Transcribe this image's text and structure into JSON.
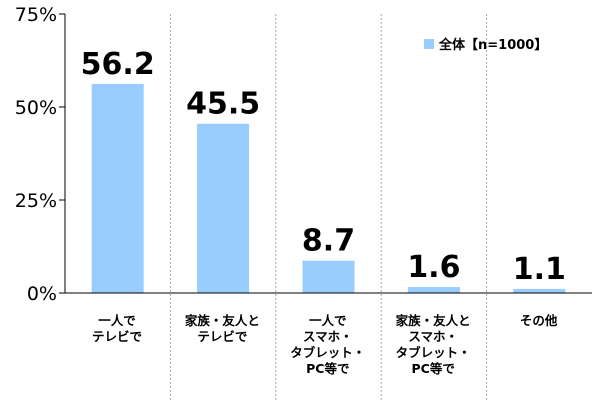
{
  "colors": {
    "bar": "#99ccff",
    "axis": "#000000",
    "divider": "#a6a6a6",
    "text": "#000000"
  },
  "legend": {
    "label": "全体【n=1000】"
  },
  "chart_data": {
    "type": "bar",
    "categories": [
      "一人で\nテレビで",
      "家族・友人と\nテレビで",
      "一人で\nスマホ・\nタブレット・\nPC等で",
      "家族・友人と\nスマホ・\nタブレット・\nPC等で",
      "その他"
    ],
    "series": [
      {
        "name": "全体【n=1000】",
        "values": [
          56.2,
          45.5,
          8.7,
          1.6,
          1.1
        ]
      }
    ],
    "value_labels": [
      "56.2",
      "45.5",
      "8.7",
      "1.6",
      "1.1"
    ],
    "y_ticks": [
      "0%",
      "25%",
      "50%",
      "75%"
    ],
    "ylim": [
      0,
      75
    ],
    "title": "",
    "xlabel": "",
    "ylabel": "",
    "grid": false,
    "legend_position": "top-right"
  }
}
